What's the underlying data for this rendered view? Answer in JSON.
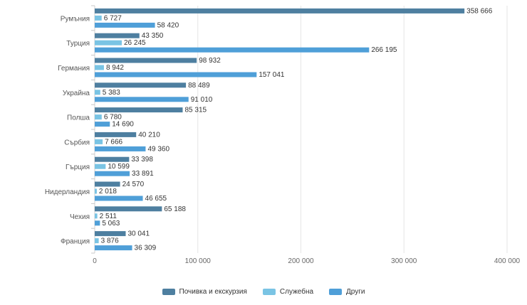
{
  "chart_data": {
    "type": "bar",
    "orientation": "horizontal",
    "categories": [
      "Румъния",
      "Турция",
      "Германия",
      "Украйна",
      "Полша",
      "Сърбия",
      "Гърция",
      "Нидерландия",
      "Чехия",
      "Франция"
    ],
    "series": [
      {
        "name": "Почивка и екскурзия",
        "color": "#4e7fa0",
        "values": [
          358666,
          43350,
          98932,
          88489,
          85315,
          40210,
          33398,
          24570,
          65188,
          30041
        ],
        "labels": [
          "358 666",
          "43 350",
          "98 932",
          "88 489",
          "85 315",
          "40 210",
          "33 398",
          "24 570",
          "65 188",
          "30 041"
        ]
      },
      {
        "name": "Служебна",
        "color": "#7ac4e4",
        "values": [
          6727,
          26245,
          8942,
          5383,
          6780,
          7666,
          10599,
          2018,
          2511,
          3876
        ],
        "labels": [
          "6 727",
          "26 245",
          "8 942",
          "5 383",
          "6 780",
          "7 666",
          "10 599",
          "2 018",
          "2 511",
          "3 876"
        ]
      },
      {
        "name": "Други",
        "color": "#4f9fd8",
        "values": [
          58420,
          266195,
          157041,
          91010,
          14690,
          49360,
          33891,
          46655,
          5063,
          36309
        ],
        "labels": [
          "58 420",
          "266 195",
          "157 041",
          "91 010",
          "14 690",
          "49 360",
          "33 891",
          "46 655",
          "5 063",
          "36 309"
        ]
      }
    ],
    "xlim": [
      0,
      400000
    ],
    "xticks": [
      0,
      100000,
      200000,
      300000,
      400000
    ],
    "xtick_labels": [
      "0",
      "100 000",
      "200 000",
      "300 000",
      "400 000"
    ],
    "grid": true,
    "legend_position": "bottom-center",
    "title": "",
    "xlabel": "",
    "ylabel": ""
  }
}
